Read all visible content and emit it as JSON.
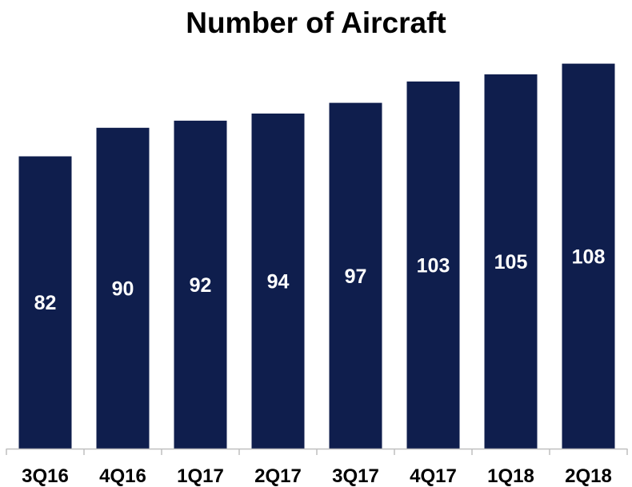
{
  "chart_data": {
    "type": "bar",
    "title": "Number of Aircraft",
    "categories": [
      "3Q16",
      "4Q16",
      "1Q17",
      "2Q17",
      "3Q17",
      "4Q17",
      "1Q18",
      "2Q18"
    ],
    "values": [
      82,
      90,
      92,
      94,
      97,
      103,
      105,
      108
    ],
    "xlabel": "",
    "ylabel": "",
    "ylim": [
      0,
      111.5
    ],
    "grid": false,
    "data_labels": "inside",
    "bar_color": "#0f1e4d",
    "axis_color": "#bfbfbf"
  }
}
